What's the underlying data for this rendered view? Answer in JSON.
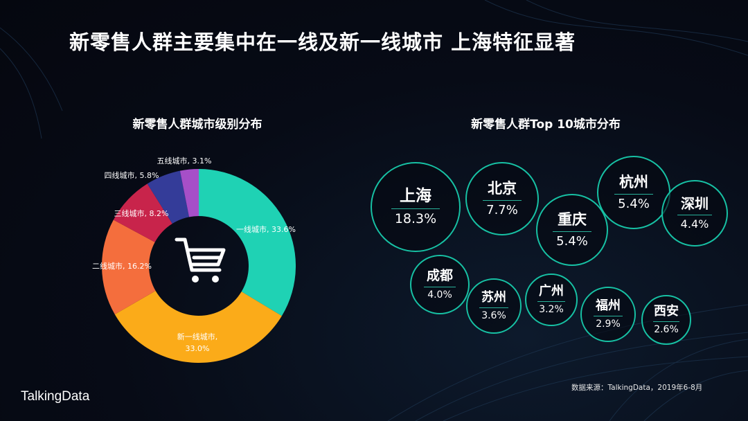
{
  "header": {
    "title": "新零售人群主要集中在一线及新一线城市 上海特征显著"
  },
  "chart_data": [
    {
      "type": "pie",
      "title": "新零售人群城市级别分布",
      "series": [
        {
          "name": "一线城市",
          "label": "一线城市, 33.6%",
          "value": 33.6,
          "color": "#1fd2b4"
        },
        {
          "name": "新一线城市",
          "label": "新一线城市,",
          "label2": "33.0%",
          "value": 33.0,
          "color": "#fbab19"
        },
        {
          "name": "二线城市",
          "label": "二线城市, 16.2%",
          "value": 16.2,
          "color": "#f46e3d"
        },
        {
          "name": "三线城市",
          "label": "三线城市, 8.2%",
          "value": 8.2,
          "color": "#c8244b"
        },
        {
          "name": "四线城市",
          "label": "四线城市, 5.8%",
          "value": 5.8,
          "color": "#343c99"
        },
        {
          "name": "五线城市",
          "label": "五线城市, 3.1%",
          "value": 3.1,
          "color": "#a64fc8"
        }
      ],
      "center_icon": "shopping-cart-icon"
    },
    {
      "type": "bubble",
      "title": "新零售人群Top 10城市分布",
      "series": [
        {
          "city": "上海",
          "value_label": "18.3%",
          "value": 18.3
        },
        {
          "city": "北京",
          "value_label": "7.7%",
          "value": 7.7
        },
        {
          "city": "杭州",
          "value_label": "5.4%",
          "value": 5.4
        },
        {
          "city": "重庆",
          "value_label": "5.4%",
          "value": 5.4
        },
        {
          "city": "深圳",
          "value_label": "4.4%",
          "value": 4.4
        },
        {
          "city": "成都",
          "value_label": "4.0%",
          "value": 4.0
        },
        {
          "city": "苏州",
          "value_label": "3.6%",
          "value": 3.6
        },
        {
          "city": "广州",
          "value_label": "3.2%",
          "value": 3.2
        },
        {
          "city": "福州",
          "value_label": "2.9%",
          "value": 2.9
        },
        {
          "city": "西安",
          "value_label": "2.6%",
          "value": 2.6
        }
      ],
      "bubble_color": "#17c1a4"
    }
  ],
  "footer": {
    "logo": "TalkingData",
    "source": "数据来源：TalkingData，2019年6-8月"
  }
}
